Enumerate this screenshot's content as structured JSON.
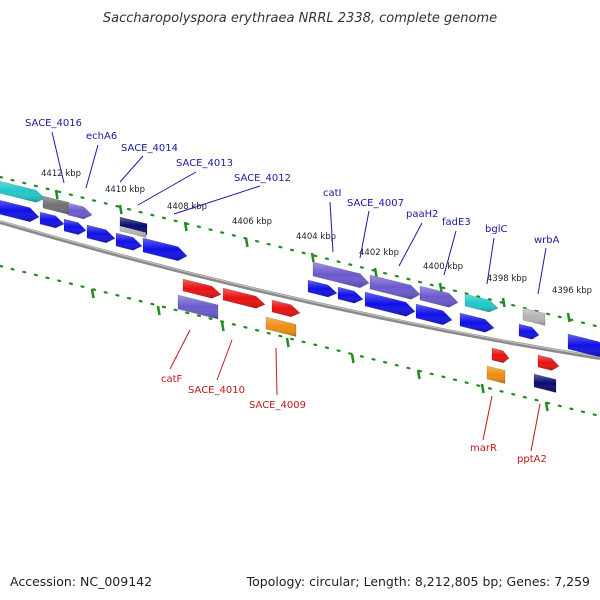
{
  "title": "Saccharopolyspora erythraea NRRL 2338, complete genome",
  "footer": {
    "accession": "Accession: NC_009142",
    "topology": "Topology: circular; Length: 8,212,805 bp; Genes: 7,259"
  },
  "ticks": [
    {
      "label": "4412 kbp",
      "pos": 4412
    },
    {
      "label": "4410 kbp",
      "pos": 4410
    },
    {
      "label": "4408 kbp",
      "pos": 4408
    },
    {
      "label": "4406 kbp",
      "pos": 4406
    },
    {
      "label": "4404 kbp",
      "pos": 4404
    },
    {
      "label": "4402 kbp",
      "pos": 4402
    },
    {
      "label": "4400 kbp",
      "pos": 4400
    },
    {
      "label": "4398 kbp",
      "pos": 4398
    },
    {
      "label": "4396 kbp",
      "pos": 4396
    }
  ],
  "colors": {
    "blue": "#1010e8",
    "purple": "#6a5acd",
    "cyan": "#20c8c8",
    "grey": "#707070",
    "lightgrey": "#b4b4b4",
    "navy": "#0a0a70",
    "red": "#e81010",
    "orange": "#f08c10",
    "tick": "#228b22",
    "backbone": "#808080",
    "label_top": "#1a1aa0",
    "label_bottom": "#c01818"
  },
  "genes_top": [
    {
      "name": "SACE_4016"
    },
    {
      "name": "echA6"
    },
    {
      "name": "SACE_4014"
    },
    {
      "name": "SACE_4013"
    },
    {
      "name": "SACE_4012"
    },
    {
      "name": "catI"
    },
    {
      "name": "SACE_4007"
    },
    {
      "name": "paaH2"
    },
    {
      "name": "fadE3"
    },
    {
      "name": "bglC"
    },
    {
      "name": "wrbA"
    }
  ],
  "genes_bottom": [
    {
      "name": "catF"
    },
    {
      "name": "SACE_4010"
    },
    {
      "name": "SACE_4009"
    },
    {
      "name": "marR"
    },
    {
      "name": "pptA2"
    }
  ]
}
